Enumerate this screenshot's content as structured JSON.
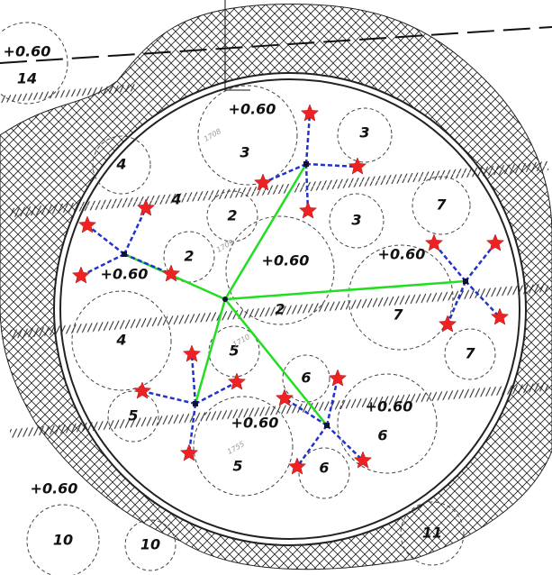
{
  "labels": [
    "+0.60",
    "14",
    "+0.60",
    "3",
    "3",
    "4",
    "4",
    "2",
    "3",
    "7",
    "2",
    "+0.60",
    "+0.60",
    "+0.60",
    "2",
    "7",
    "4",
    "5",
    "7",
    "6",
    "+0.60",
    "5",
    "+0.60",
    "6",
    "5",
    "6",
    "+0.60",
    "10",
    "10",
    "11"
  ],
  "minor_labels": [
    "1708",
    "1709",
    "1710",
    "1755"
  ]
}
